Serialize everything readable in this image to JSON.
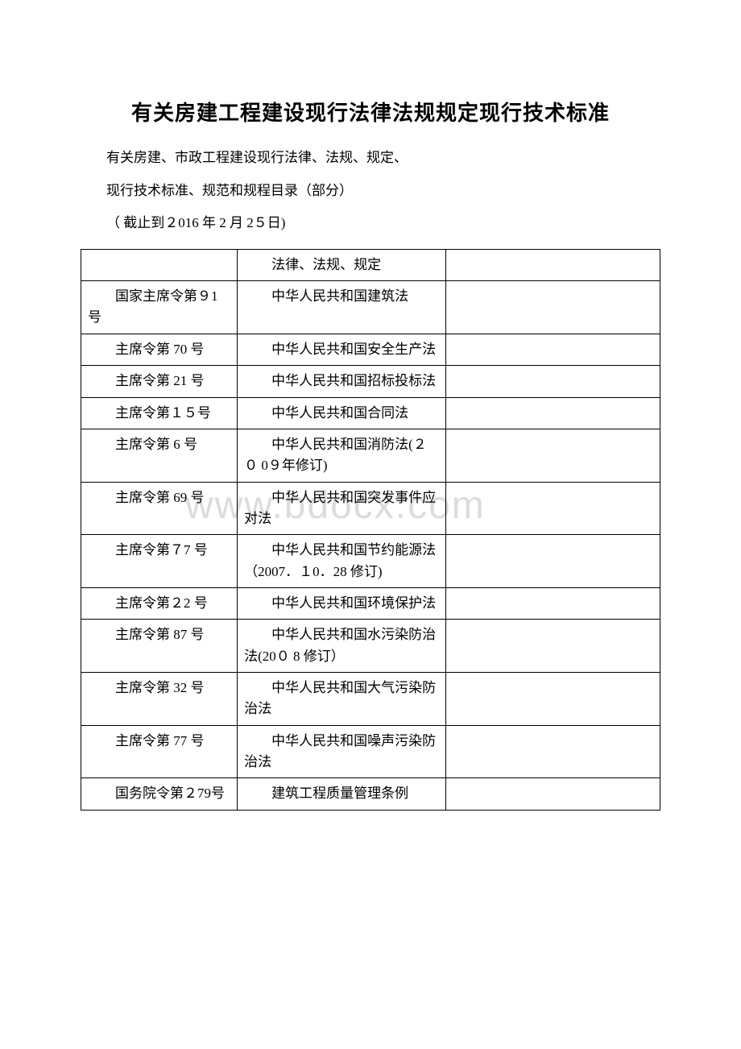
{
  "title": "有关房建工程建设现行法律法规规定现行技术标准",
  "subtitle1": "有关房建、市政工程建设现行法律、法规、规定、",
  "subtitle2": "现行技术标准、规范和规程目录（部分）",
  "cutoff": "（ 截止到２016 年 2 月 2５日)",
  "table_header": "法律、法规、规定",
  "rows": [
    {
      "col1": "国家主席令第９1号",
      "col2": "中华人民共和国建筑法",
      "col3": ""
    },
    {
      "col1": "主席令第 70 号",
      "col2": "中华人民共和国安全生产法",
      "col3": ""
    },
    {
      "col1": "主席令第 21 号",
      "col2": "中华人民共和国招标投标法",
      "col3": ""
    },
    {
      "col1": "主席令第１５号",
      "col2": "中华人民共和国合同法",
      "col3": ""
    },
    {
      "col1": "主席令第 6 号",
      "col2": "中华人民共和国消防法(２０ 0９年修订)",
      "col3": ""
    },
    {
      "col1": "主席令第 69 号",
      "col2": "中华人民共和国突发事件应对法",
      "col3": ""
    },
    {
      "col1": "主席令第７7 号",
      "col2": "中华人民共和国节约能源法（2007．１0．28 修订)",
      "col3": ""
    },
    {
      "col1": "主席令第２2 号",
      "col2": "中华人民共和国环境保护法",
      "col3": ""
    },
    {
      "col1": "主席令第 87 号",
      "col2": "中华人民共和国水污染防治法(20０ 8 修订）",
      "col3": ""
    },
    {
      "col1": "主席令第 32 号",
      "col2": "中华人民共和国大气污染防治法",
      "col3": ""
    },
    {
      "col1": "主席令第 77 号",
      "col2": "中华人民共和国噪声污染防治法",
      "col3": ""
    },
    {
      "col1": "国务院令第２79号",
      "col2": "建筑工程质量管理条例",
      "col3": ""
    }
  ],
  "watermark": "www.bdocx.com",
  "styles": {
    "background_color": "#ffffff",
    "text_color": "#000000",
    "border_color": "#000000",
    "watermark_color": "#dcdcdc",
    "title_fontsize": 26,
    "body_fontsize": 17
  }
}
